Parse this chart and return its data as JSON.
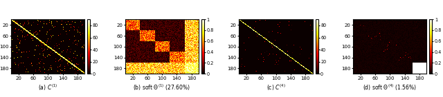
{
  "figsize": [
    6.4,
    1.41
  ],
  "dpi": 100,
  "n": 200,
  "n_clusters": 5,
  "cluster_size": 40,
  "subtitles": [
    "(a) $C^{(1)}$",
    "(b) soft $\\Theta^{(1)}$ (27.60%)",
    "(c) $C^{(4)}$",
    "(d) soft $\\Theta^{(4)}$ (1.56%)"
  ],
  "colormap": "hot",
  "tick_vals": [
    20,
    60,
    100,
    140,
    180
  ],
  "cbar_ticks_a": [
    0,
    20,
    40,
    60,
    80
  ],
  "cbar_ticks_b": [
    0.0,
    0.2,
    0.4,
    0.6,
    0.8,
    1.0
  ],
  "font_size": 5.0,
  "vmax_a": 90,
  "vmax_c": 90
}
